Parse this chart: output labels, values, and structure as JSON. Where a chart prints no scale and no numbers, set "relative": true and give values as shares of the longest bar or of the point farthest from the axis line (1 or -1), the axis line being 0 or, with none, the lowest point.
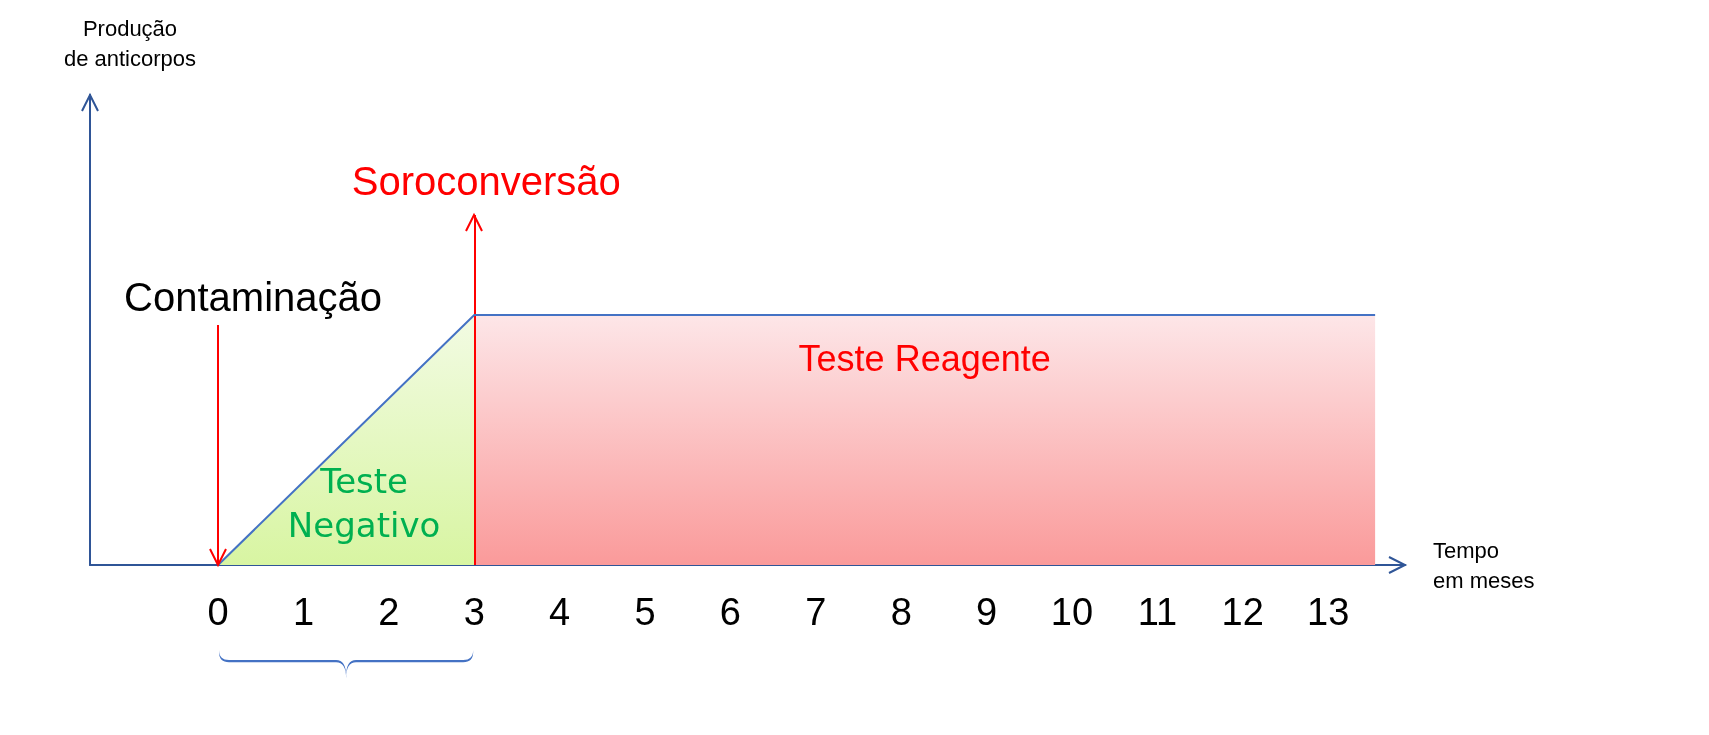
{
  "chart_data": {
    "type": "line",
    "relative": true,
    "xlabel": "Tempo\nem meses",
    "annotations": [
      "Teste\nNegativo",
      "Produção\nde anticorpos"
    ],
    "xlim": [
      -1.5,
      13.9
    ],
    "xticks": [
      0,
      1,
      2,
      3,
      4,
      5,
      6,
      7,
      8,
      9,
      10,
      11,
      12,
      13
    ],
    "series": [
      {
        "type": "area",
        "color": "#d8f5a2",
        "x": [
          0,
          3
        ],
        "values": [
          0,
          1
        ]
      },
      {
        "color": "#4472c4",
        "x": [
          0,
          3,
          13.55
        ],
        "values": [
          0,
          1,
          1
        ]
      }
    ],
    "bands": [
      {
        "axis": "x",
        "from": 3,
        "to": 13.55,
        "label": "Teste Reagente",
        "color": "#fa9a9a"
      }
    ],
    "ref_lines": [
      {
        "axis": "x",
        "value": 0,
        "label": "Contaminação",
        "color": "#ff0000"
      },
      {
        "axis": "x",
        "value": 3,
        "label": "Soroconversão",
        "color": "#ff0000"
      }
    ],
    "tick_labels": "x",
    "grid": false,
    "marker": "none"
  }
}
